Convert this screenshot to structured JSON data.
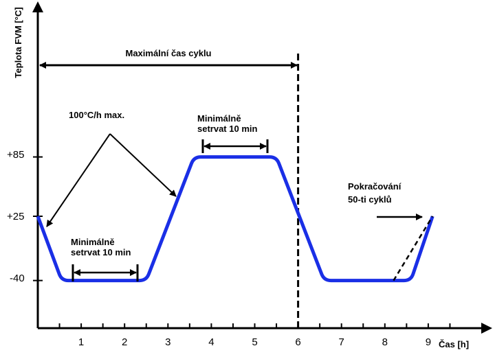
{
  "chart_data": {
    "type": "line",
    "title": "",
    "ylabel": "Teplota FVM [°C]",
    "xlabel": "Čas [h]",
    "xlim": [
      0,
      10.5
    ],
    "ylim": [
      -85,
      180
    ],
    "x_ticks": [
      1,
      2,
      3,
      4,
      5,
      6,
      7,
      8,
      9
    ],
    "y_ticks": [
      {
        "value": 85,
        "label": "+85"
      },
      {
        "value": 25,
        "label": "+25"
      },
      {
        "value": -40,
        "label": "-40"
      }
    ],
    "series": [
      {
        "color": "#1a2fe6",
        "points": [
          [
            0,
            25
          ],
          [
            0.55,
            -40
          ],
          [
            2.5,
            -40
          ],
          [
            3.6,
            85
          ],
          [
            5.5,
            85
          ],
          [
            6.6,
            -40
          ],
          [
            8.6,
            -40
          ],
          [
            9.1,
            25
          ]
        ],
        "line_style": "solid"
      },
      {
        "color": "#000000",
        "points": [
          [
            8.2,
            -40
          ],
          [
            9.1,
            25
          ]
        ],
        "line_style": "dashed"
      }
    ],
    "vertical_lines": [
      {
        "x": 6,
        "style": "dashed"
      }
    ],
    "annotations": {
      "max_cycle_time": "Maximální čas cyklu",
      "ramp_rate": "100°C/h max.",
      "dwell_low_line1": "Minimálně",
      "dwell_low_line2": "setrvat 10 min",
      "dwell_high_line1": "Minimálně",
      "dwell_high_line2": "setrvat 10 min",
      "continue_line1": "Pokračování",
      "continue_line2": "50-ti cyklů"
    }
  }
}
